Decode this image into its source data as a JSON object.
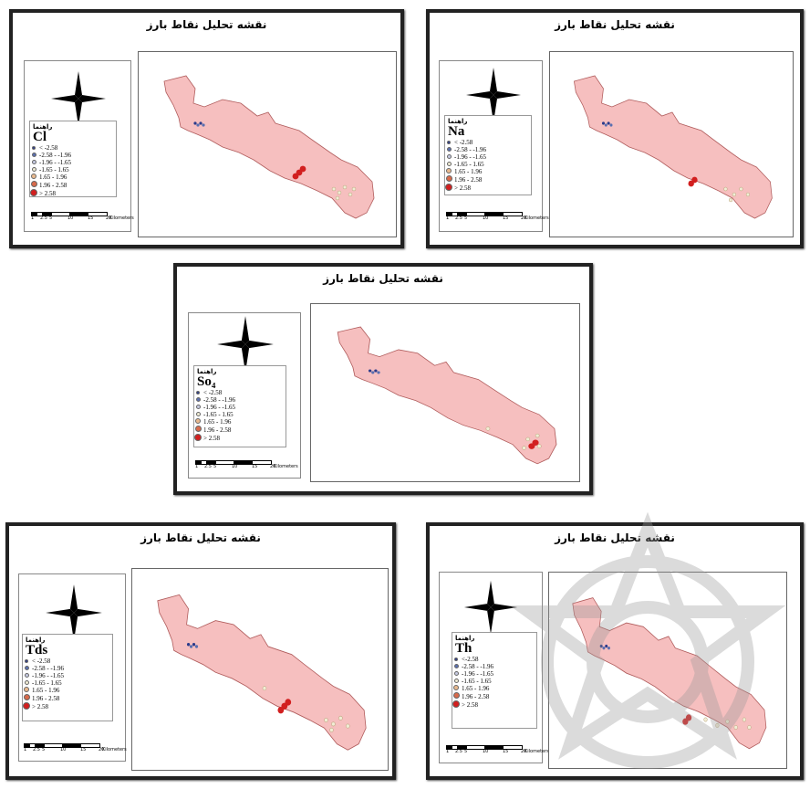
{
  "panel_title": "نقشه تحلیل نقاط بارز",
  "legend_heading": "راهنما",
  "legend_classes": [
    "< -2.58",
    "-2.58 - -1.96",
    "-1.96 - -1.65",
    "-1.65 - 1.65",
    "1.65 - 1.96",
    "1.96 - 2.58",
    "> 2.58"
  ],
  "legend_classes_th": [
    "<-2.58",
    "-2.58 - -1.96",
    "-1.96 - -1.65",
    "-1.65 - 1.65",
    "1.65 - 1.96",
    "1.96 - 2.58",
    "> 2.58"
  ],
  "symbol_colors": [
    "#2a3a8a",
    "#5a6fb0",
    "#c7cbe3",
    "#f1edd5",
    "#e8b98e",
    "#d86a4b",
    "#d21f1f"
  ],
  "scale_labels": [
    "1",
    "2.5",
    "5",
    "10",
    "15",
    "20",
    "Kilometers"
  ],
  "panels": [
    {
      "element": "Cl"
    },
    {
      "element": "Na"
    },
    {
      "element": "So₄"
    },
    {
      "element": "Tds"
    },
    {
      "element": "Th"
    }
  ],
  "map_colors": {
    "region_fill": "#f6bfbf",
    "region_stroke": "#b05c5c"
  }
}
